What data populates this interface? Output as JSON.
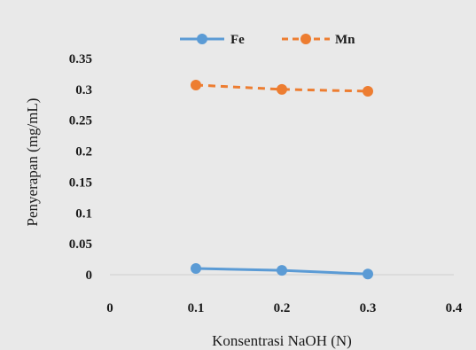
{
  "chart_data": {
    "type": "line",
    "xlabel": "Konsentrasi NaOH (N)",
    "ylabel": "Penyerapan (mg/mL)",
    "xlim": [
      0,
      0.4
    ],
    "ylim": [
      0,
      0.35
    ],
    "x_ticks": [
      "0",
      "0.1",
      "0.2",
      "0.3",
      "0.4"
    ],
    "y_ticks": [
      "0",
      "0.05",
      "0.1",
      "0.15",
      "0.2",
      "0.25",
      "0.3",
      "0.35"
    ],
    "x_tick_values": [
      0,
      0.1,
      0.2,
      0.3,
      0.4
    ],
    "y_tick_values": [
      0,
      0.05,
      0.1,
      0.15,
      0.2,
      0.25,
      0.3,
      0.35
    ],
    "grid": false,
    "legend_position": "top",
    "series": [
      {
        "name": "Fe",
        "x": [
          0.1,
          0.2,
          0.3
        ],
        "values": [
          0.01,
          0.007,
          0.001
        ],
        "color": "#5b9bd5",
        "style": "solid"
      },
      {
        "name": "Mn",
        "x": [
          0.1,
          0.2,
          0.3
        ],
        "values": [
          0.307,
          0.3,
          0.297
        ],
        "color": "#ed7d31",
        "style": "dashed"
      }
    ]
  }
}
